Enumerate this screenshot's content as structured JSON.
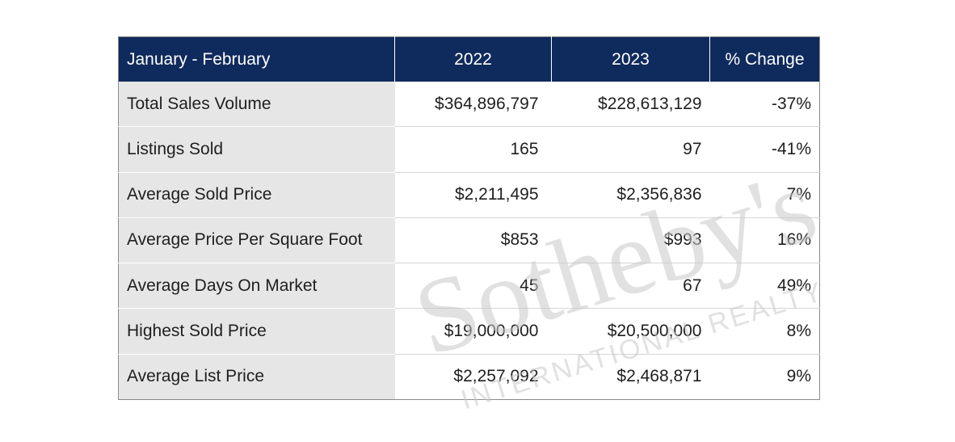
{
  "table": {
    "headers": [
      "January - February",
      "2022",
      "2023",
      "% Change"
    ],
    "rows": [
      {
        "metric": "Total Sales Volume",
        "y2022": "$364,896,797",
        "y2023": "$228,613,129",
        "change": "-37%"
      },
      {
        "metric": "Listings Sold",
        "y2022": "165",
        "y2023": "97",
        "change": "-41%"
      },
      {
        "metric": "Average Sold Price",
        "y2022": "$2,211,495",
        "y2023": "$2,356,836",
        "change": "7%"
      },
      {
        "metric": "Average Price Per Square Foot",
        "y2022": "$853",
        "y2023": "$993",
        "change": "16%"
      },
      {
        "metric": "Average Days On Market",
        "y2022": "45",
        "y2023": "67",
        "change": "49%"
      },
      {
        "metric": "Highest Sold Price",
        "y2022": "$19,000,000",
        "y2023": "$20,500,000",
        "change": "8%"
      },
      {
        "metric": "Average List Price",
        "y2022": "$2,257,092",
        "y2023": "$2,468,871",
        "change": "9%"
      }
    ]
  },
  "watermark": {
    "brand": "Sotheby's",
    "tagline": "INTERNATIONAL REALTY"
  },
  "colors": {
    "header_bg": "#0f2a5c",
    "header_text": "#ffffff",
    "label_bg": "#e6e6e6"
  }
}
